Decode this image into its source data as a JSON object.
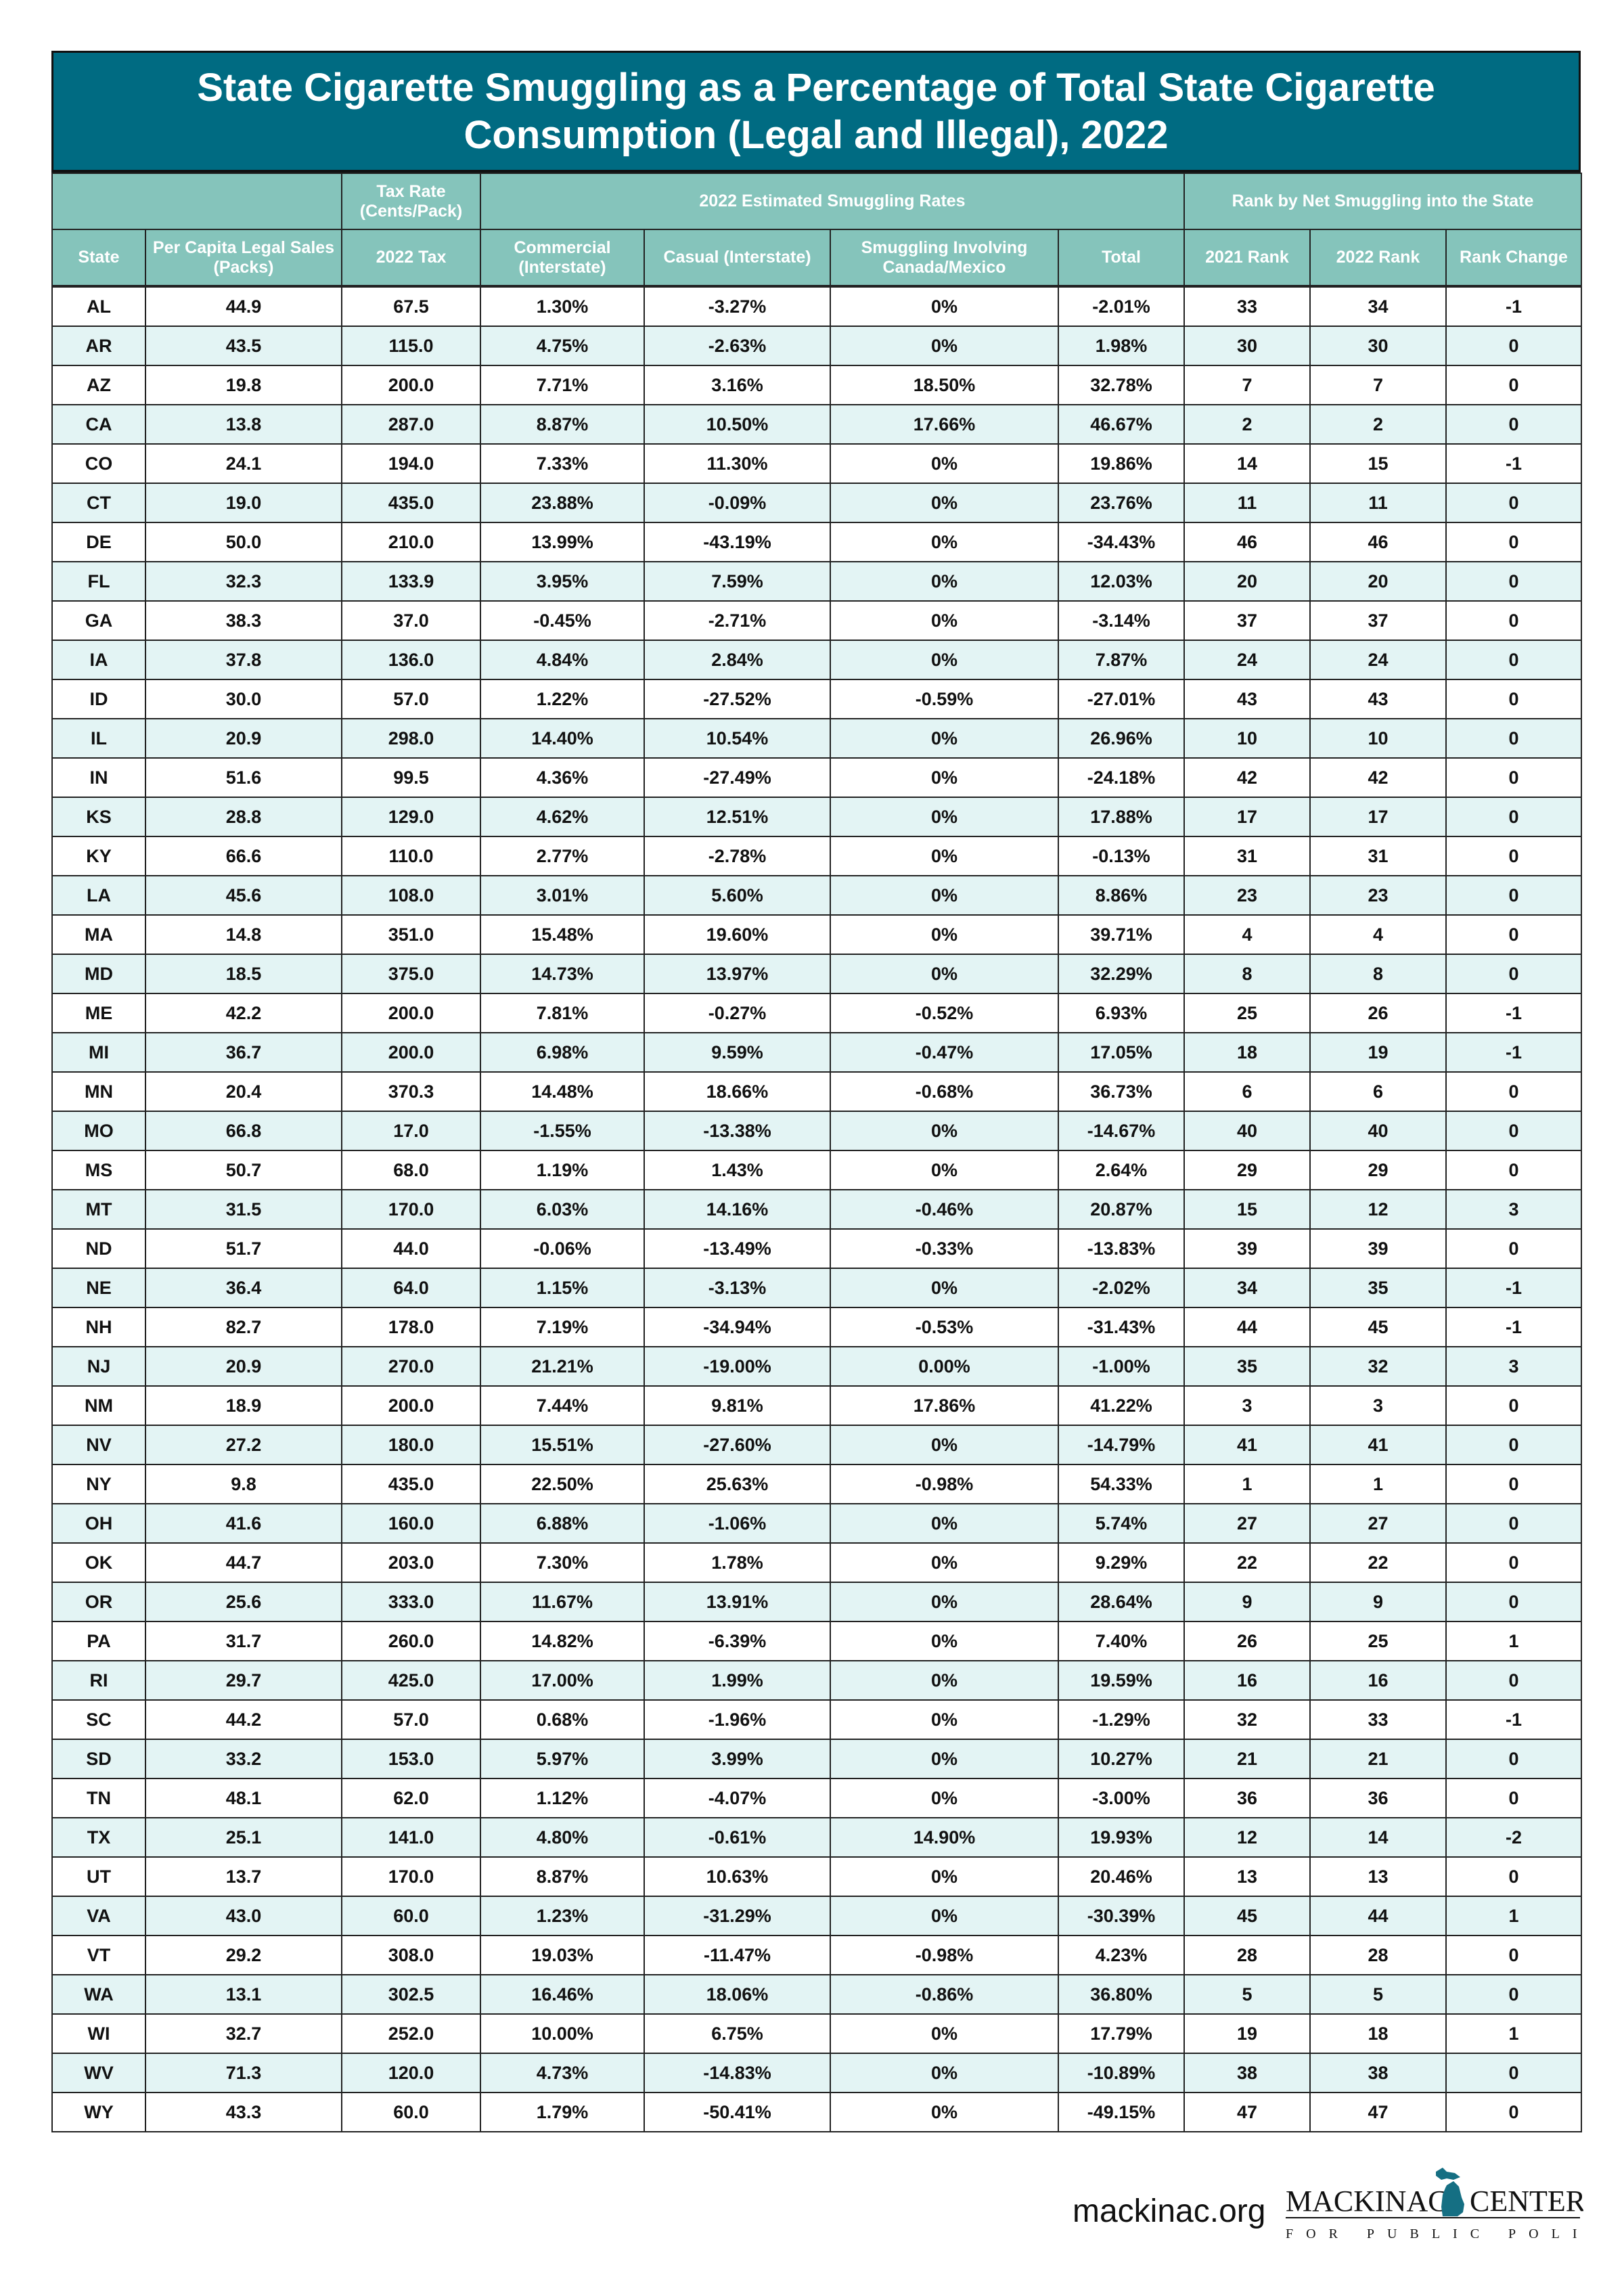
{
  "title": "State Cigarette Smuggling as a Percentage of Total State Cigarette Consumption (Legal and Illegal), 2022",
  "colors": {
    "title_bg": "#006b82",
    "header_bg": "#85c4bb",
    "alt_row_bg": "#e3f4f4"
  },
  "group_headers": {
    "tax_rate": "Tax Rate (Cents/Pack)",
    "smuggling": "2022 Estimated Smuggling Rates",
    "rank": "Rank by Net Smuggling into the State"
  },
  "columns": [
    "State",
    "Per Capita Legal Sales (Packs)",
    "2022 Tax",
    "Commercial (Interstate)",
    "Casual (Interstate)",
    "Smuggling Involving Canada/Mexico",
    "Total",
    "2021 Rank",
    "2022 Rank",
    "Rank Change"
  ],
  "rows": [
    [
      "AL",
      "44.9",
      "67.5",
      "1.30%",
      "-3.27%",
      "0%",
      "-2.01%",
      "33",
      "34",
      "-1"
    ],
    [
      "AR",
      "43.5",
      "115.0",
      "4.75%",
      "-2.63%",
      "0%",
      "1.98%",
      "30",
      "30",
      "0"
    ],
    [
      "AZ",
      "19.8",
      "200.0",
      "7.71%",
      "3.16%",
      "18.50%",
      "32.78%",
      "7",
      "7",
      "0"
    ],
    [
      "CA",
      "13.8",
      "287.0",
      "8.87%",
      "10.50%",
      "17.66%",
      "46.67%",
      "2",
      "2",
      "0"
    ],
    [
      "CO",
      "24.1",
      "194.0",
      "7.33%",
      "11.30%",
      "0%",
      "19.86%",
      "14",
      "15",
      "-1"
    ],
    [
      "CT",
      "19.0",
      "435.0",
      "23.88%",
      "-0.09%",
      "0%",
      "23.76%",
      "11",
      "11",
      "0"
    ],
    [
      "DE",
      "50.0",
      "210.0",
      "13.99%",
      "-43.19%",
      "0%",
      "-34.43%",
      "46",
      "46",
      "0"
    ],
    [
      "FL",
      "32.3",
      "133.9",
      "3.95%",
      "7.59%",
      "0%",
      "12.03%",
      "20",
      "20",
      "0"
    ],
    [
      "GA",
      "38.3",
      "37.0",
      "-0.45%",
      "-2.71%",
      "0%",
      "-3.14%",
      "37",
      "37",
      "0"
    ],
    [
      "IA",
      "37.8",
      "136.0",
      "4.84%",
      "2.84%",
      "0%",
      "7.87%",
      "24",
      "24",
      "0"
    ],
    [
      "ID",
      "30.0",
      "57.0",
      "1.22%",
      "-27.52%",
      "-0.59%",
      "-27.01%",
      "43",
      "43",
      "0"
    ],
    [
      "IL",
      "20.9",
      "298.0",
      "14.40%",
      "10.54%",
      "0%",
      "26.96%",
      "10",
      "10",
      "0"
    ],
    [
      "IN",
      "51.6",
      "99.5",
      "4.36%",
      "-27.49%",
      "0%",
      "-24.18%",
      "42",
      "42",
      "0"
    ],
    [
      "KS",
      "28.8",
      "129.0",
      "4.62%",
      "12.51%",
      "0%",
      "17.88%",
      "17",
      "17",
      "0"
    ],
    [
      "KY",
      "66.6",
      "110.0",
      "2.77%",
      "-2.78%",
      "0%",
      "-0.13%",
      "31",
      "31",
      "0"
    ],
    [
      "LA",
      "45.6",
      "108.0",
      "3.01%",
      "5.60%",
      "0%",
      "8.86%",
      "23",
      "23",
      "0"
    ],
    [
      "MA",
      "14.8",
      "351.0",
      "15.48%",
      "19.60%",
      "0%",
      "39.71%",
      "4",
      "4",
      "0"
    ],
    [
      "MD",
      "18.5",
      "375.0",
      "14.73%",
      "13.97%",
      "0%",
      "32.29%",
      "8",
      "8",
      "0"
    ],
    [
      "ME",
      "42.2",
      "200.0",
      "7.81%",
      "-0.27%",
      "-0.52%",
      "6.93%",
      "25",
      "26",
      "-1"
    ],
    [
      "MI",
      "36.7",
      "200.0",
      "6.98%",
      "9.59%",
      "-0.47%",
      "17.05%",
      "18",
      "19",
      "-1"
    ],
    [
      "MN",
      "20.4",
      "370.3",
      "14.48%",
      "18.66%",
      "-0.68%",
      "36.73%",
      "6",
      "6",
      "0"
    ],
    [
      "MO",
      "66.8",
      "17.0",
      "-1.55%",
      "-13.38%",
      "0%",
      "-14.67%",
      "40",
      "40",
      "0"
    ],
    [
      "MS",
      "50.7",
      "68.0",
      "1.19%",
      "1.43%",
      "0%",
      "2.64%",
      "29",
      "29",
      "0"
    ],
    [
      "MT",
      "31.5",
      "170.0",
      "6.03%",
      "14.16%",
      "-0.46%",
      "20.87%",
      "15",
      "12",
      "3"
    ],
    [
      "ND",
      "51.7",
      "44.0",
      "-0.06%",
      "-13.49%",
      "-0.33%",
      "-13.83%",
      "39",
      "39",
      "0"
    ],
    [
      "NE",
      "36.4",
      "64.0",
      "1.15%",
      "-3.13%",
      "0%",
      "-2.02%",
      "34",
      "35",
      "-1"
    ],
    [
      "NH",
      "82.7",
      "178.0",
      "7.19%",
      "-34.94%",
      "-0.53%",
      "-31.43%",
      "44",
      "45",
      "-1"
    ],
    [
      "NJ",
      "20.9",
      "270.0",
      "21.21%",
      "-19.00%",
      "0.00%",
      "-1.00%",
      "35",
      "32",
      "3"
    ],
    [
      "NM",
      "18.9",
      "200.0",
      "7.44%",
      "9.81%",
      "17.86%",
      "41.22%",
      "3",
      "3",
      "0"
    ],
    [
      "NV",
      "27.2",
      "180.0",
      "15.51%",
      "-27.60%",
      "0%",
      "-14.79%",
      "41",
      "41",
      "0"
    ],
    [
      "NY",
      "9.8",
      "435.0",
      "22.50%",
      "25.63%",
      "-0.98%",
      "54.33%",
      "1",
      "1",
      "0"
    ],
    [
      "OH",
      "41.6",
      "160.0",
      "6.88%",
      "-1.06%",
      "0%",
      "5.74%",
      "27",
      "27",
      "0"
    ],
    [
      "OK",
      "44.7",
      "203.0",
      "7.30%",
      "1.78%",
      "0%",
      "9.29%",
      "22",
      "22",
      "0"
    ],
    [
      "OR",
      "25.6",
      "333.0",
      "11.67%",
      "13.91%",
      "0%",
      "28.64%",
      "9",
      "9",
      "0"
    ],
    [
      "PA",
      "31.7",
      "260.0",
      "14.82%",
      "-6.39%",
      "0%",
      "7.40%",
      "26",
      "25",
      "1"
    ],
    [
      "RI",
      "29.7",
      "425.0",
      "17.00%",
      "1.99%",
      "0%",
      "19.59%",
      "16",
      "16",
      "0"
    ],
    [
      "SC",
      "44.2",
      "57.0",
      "0.68%",
      "-1.96%",
      "0%",
      "-1.29%",
      "32",
      "33",
      "-1"
    ],
    [
      "SD",
      "33.2",
      "153.0",
      "5.97%",
      "3.99%",
      "0%",
      "10.27%",
      "21",
      "21",
      "0"
    ],
    [
      "TN",
      "48.1",
      "62.0",
      "1.12%",
      "-4.07%",
      "0%",
      "-3.00%",
      "36",
      "36",
      "0"
    ],
    [
      "TX",
      "25.1",
      "141.0",
      "4.80%",
      "-0.61%",
      "14.90%",
      "19.93%",
      "12",
      "14",
      "-2"
    ],
    [
      "UT",
      "13.7",
      "170.0",
      "8.87%",
      "10.63%",
      "0%",
      "20.46%",
      "13",
      "13",
      "0"
    ],
    [
      "VA",
      "43.0",
      "60.0",
      "1.23%",
      "-31.29%",
      "0%",
      "-30.39%",
      "45",
      "44",
      "1"
    ],
    [
      "VT",
      "29.2",
      "308.0",
      "19.03%",
      "-11.47%",
      "-0.98%",
      "4.23%",
      "28",
      "28",
      "0"
    ],
    [
      "WA",
      "13.1",
      "302.5",
      "16.46%",
      "18.06%",
      "-0.86%",
      "36.80%",
      "5",
      "5",
      "0"
    ],
    [
      "WI",
      "32.7",
      "252.0",
      "10.00%",
      "6.75%",
      "0%",
      "17.79%",
      "19",
      "18",
      "1"
    ],
    [
      "WV",
      "71.3",
      "120.0",
      "4.73%",
      "-14.83%",
      "0%",
      "-10.89%",
      "38",
      "38",
      "0"
    ],
    [
      "WY",
      "43.3",
      "60.0",
      "1.79%",
      "-50.41%",
      "0%",
      "-49.15%",
      "47",
      "47",
      "0"
    ]
  ],
  "footer": {
    "url": "mackinac.org",
    "logo_text": "MACKINAC CENTER",
    "logo_subtext": "FOR PUBLIC POLICY"
  }
}
